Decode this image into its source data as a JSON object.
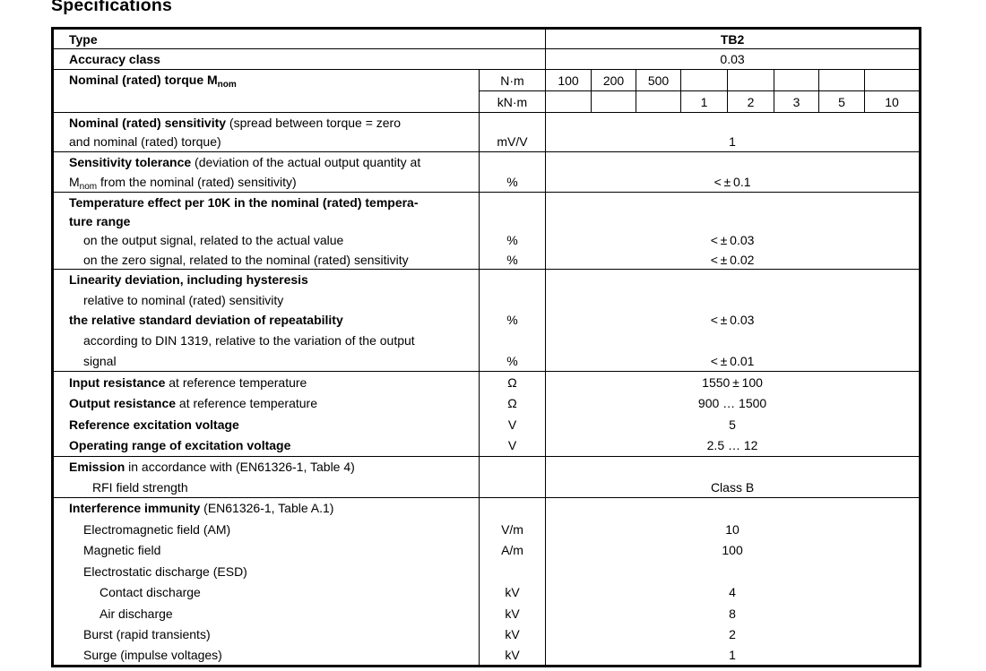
{
  "title": "Specifications",
  "table": {
    "type_row": {
      "label": "Type",
      "value": "TB2"
    },
    "accuracy_row": {
      "label": "Accuracy class",
      "value": "0.03"
    },
    "torque_row": {
      "label_runs": [
        {
          "t": "Nominal (rated) torque M",
          "b": true
        },
        {
          "t": "nom",
          "b": true,
          "sub": true
        }
      ],
      "unit_rows": [
        {
          "unit": "N·m",
          "cells": [
            "100",
            "200",
            "500",
            "",
            "",
            "",
            "",
            ""
          ]
        },
        {
          "unit": "kN·m",
          "cells": [
            "",
            "",
            "",
            "1",
            "2",
            "3",
            "5",
            "10"
          ]
        }
      ]
    },
    "blocks": [
      {
        "name": "nominal-sensitivity",
        "lines": [
          {
            "runs": [
              {
                "t": "Nominal (rated) sensitivity",
                "b": true
              },
              {
                "t": " (spread between torque = zero"
              }
            ]
          },
          {
            "runs": [
              {
                "t": "and nominal (rated) torque)"
              }
            ],
            "unit": "mV/V",
            "value": "1"
          }
        ]
      },
      {
        "name": "sensitivity-tolerance",
        "lines": [
          {
            "runs": [
              {
                "t": "Sensitivity tolerance",
                "b": true
              },
              {
                "t": " (deviation of the actual output quantity at"
              }
            ]
          },
          {
            "runs": [
              {
                "t": "M"
              },
              {
                "t": "nom",
                "sub": true
              },
              {
                "t": " from the nominal (rated) sensitivity)"
              }
            ],
            "unit": "%",
            "value": "< ± 0.1"
          }
        ]
      },
      {
        "name": "temperature-effect",
        "lines": [
          {
            "runs": [
              {
                "t": "Temperature effect per 10K in the nominal (rated) tempera-",
                "b": true
              }
            ]
          },
          {
            "runs": [
              {
                "t": "ture range",
                "b": true
              }
            ]
          },
          {
            "indent": 1,
            "runs": [
              {
                "t": "on the output signal, related to the actual value"
              }
            ],
            "unit": "%",
            "value": "< ± 0.03"
          },
          {
            "indent": 1,
            "runs": [
              {
                "t": "on the zero signal, related to the nominal (rated) sensitivity"
              }
            ],
            "unit": "%",
            "value": "< ± 0.02"
          }
        ]
      },
      {
        "name": "linearity-repeatability",
        "lines": [
          {
            "runs": [
              {
                "t": "Linearity deviation, including hysteresis",
                "b": true
              }
            ]
          },
          {
            "indent": 1,
            "runs": [
              {
                "t": "relative to nominal (rated) sensitivity"
              }
            ]
          },
          {
            "runs": [
              {
                "t": "the relative standard deviation of repeatability",
                "b": true
              }
            ],
            "unit": "%",
            "value": "< ± 0.03"
          },
          {
            "indent": 1,
            "runs": [
              {
                "t": "according to DIN 1319, relative to the variation of the output"
              }
            ]
          },
          {
            "indent": 1,
            "runs": [
              {
                "t": "signal"
              }
            ],
            "unit": "%",
            "value": "< ± 0.01"
          }
        ]
      },
      {
        "name": "resistance-excitation",
        "lines": [
          {
            "runs": [
              {
                "t": "Input resistance",
                "b": true
              },
              {
                "t": " at reference temperature"
              }
            ],
            "unit": "Ω",
            "value": "1550 ± 100"
          },
          {
            "runs": [
              {
                "t": "Output resistance",
                "b": true
              },
              {
                "t": " at reference temperature"
              }
            ],
            "unit": "Ω",
            "value": "900 … 1500"
          },
          {
            "runs": [
              {
                "t": "Reference excitation voltage",
                "b": true
              }
            ],
            "unit": "V",
            "value": "5"
          },
          {
            "runs": [
              {
                "t": "Operating range of excitation voltage",
                "b": true
              }
            ],
            "unit": "V",
            "value": "2.5 … 12"
          }
        ]
      },
      {
        "name": "emission",
        "lines": [
          {
            "runs": [
              {
                "t": "Emission",
                "b": true
              },
              {
                "t": " in accordance with (EN61326-1, Table 4)"
              }
            ]
          },
          {
            "indent": 1.5,
            "runs": [
              {
                "t": "RFI field strength"
              }
            ],
            "value": "Class B"
          }
        ]
      },
      {
        "name": "interference-immunity",
        "lines": [
          {
            "runs": [
              {
                "t": "Interference immunity",
                "b": true
              },
              {
                "t": " (EN61326-1, Table A.1)"
              }
            ]
          },
          {
            "indent": 1,
            "runs": [
              {
                "t": "Electromagnetic field (AM)"
              }
            ],
            "unit": "V/m",
            "value": "10"
          },
          {
            "indent": 1,
            "runs": [
              {
                "t": "Magnetic field"
              }
            ],
            "unit": "A/m",
            "value": "100"
          },
          {
            "indent": 1,
            "runs": [
              {
                "t": "Electrostatic discharge (ESD)"
              }
            ]
          },
          {
            "indent": 2,
            "runs": [
              {
                "t": "Contact discharge"
              }
            ],
            "unit": "kV",
            "value": "4"
          },
          {
            "indent": 2,
            "runs": [
              {
                "t": "Air discharge"
              }
            ],
            "unit": "kV",
            "value": "8"
          },
          {
            "indent": 1,
            "runs": [
              {
                "t": "Burst (rapid transients)"
              }
            ],
            "unit": "kV",
            "value": "2"
          },
          {
            "indent": 1,
            "runs": [
              {
                "t": "Surge (impulse voltages)"
              }
            ],
            "unit": "kV",
            "value": "1"
          }
        ]
      }
    ]
  }
}
